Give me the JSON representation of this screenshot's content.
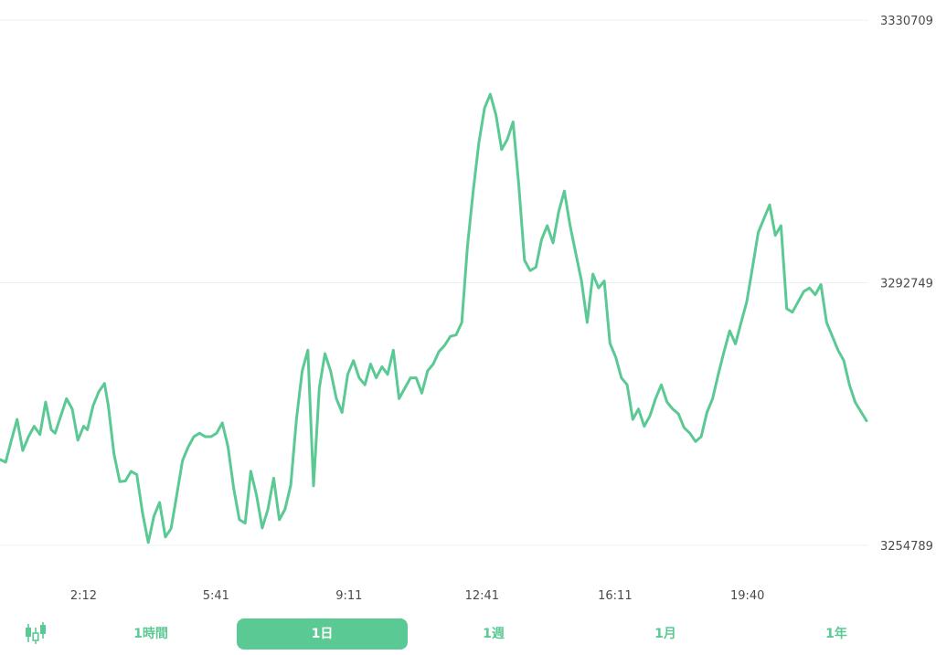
{
  "chart_data": {
    "type": "line",
    "color": "#5bc994",
    "grid": true,
    "y_ticks": [
      "3330709",
      "3292749",
      "3254789"
    ],
    "y_tick_values": [
      3330709,
      3292749,
      3254789
    ],
    "x_ticks": [
      "2:12",
      "5:41",
      "9:11",
      "12:41",
      "16:11",
      "19:40"
    ],
    "x_tick_positions": [
      2.2,
      5.683,
      9.183,
      12.683,
      16.183,
      19.667
    ],
    "x_range": [
      0,
      22.8
    ],
    "ylim": [
      3254789,
      3330709
    ],
    "series": [
      {
        "x": [
          0,
          0.15,
          0.3,
          0.45,
          0.6,
          0.75,
          0.9,
          1.05,
          1.2,
          1.35,
          1.45,
          1.6,
          1.75,
          1.9,
          2.05,
          2.2,
          2.3,
          2.45,
          2.6,
          2.75,
          2.85,
          3.0,
          3.15,
          3.3,
          3.45,
          3.6,
          3.75,
          3.9,
          4.05,
          4.2,
          4.35,
          4.5,
          4.65,
          4.8,
          4.95,
          5.1,
          5.25,
          5.4,
          5.55,
          5.7,
          5.85,
          6.0,
          6.15,
          6.3,
          6.45,
          6.6,
          6.75,
          6.9,
          7.05,
          7.2,
          7.35,
          7.5,
          7.65,
          7.8,
          7.95,
          8.1,
          8.25,
          8.4,
          8.55,
          8.7,
          8.85,
          9.0,
          9.15,
          9.3,
          9.45,
          9.6,
          9.75,
          9.9,
          10.05,
          10.2,
          10.35,
          10.5,
          10.65,
          10.8,
          10.95,
          11.1,
          11.25,
          11.4,
          11.55,
          11.7,
          11.85,
          12.0,
          12.15,
          12.3,
          12.45,
          12.6,
          12.75,
          12.9,
          13.05,
          13.2,
          13.35,
          13.5,
          13.65,
          13.8,
          13.95,
          14.1,
          14.25,
          14.4,
          14.55,
          14.7,
          14.85,
          15.0,
          15.15,
          15.3,
          15.45,
          15.6,
          15.75,
          15.9,
          16.05,
          16.2,
          16.35,
          16.5,
          16.65,
          16.8,
          16.95,
          17.1,
          17.25,
          17.4,
          17.55,
          17.7,
          17.85,
          18.0,
          18.15,
          18.3,
          18.45,
          18.6,
          18.75,
          18.9,
          19.05,
          19.2,
          19.35,
          19.5,
          19.65,
          19.8,
          19.95,
          20.1,
          20.25,
          20.4,
          20.55,
          20.7,
          20.85,
          21.0,
          21.15,
          21.3,
          21.45,
          21.6,
          21.75,
          21.9,
          22.05,
          22.2,
          22.35,
          22.5,
          22.8
        ],
        "y": [
          3267200,
          3266800,
          3270000,
          3273000,
          3268500,
          3270500,
          3272000,
          3270800,
          3275500,
          3271500,
          3271000,
          3273500,
          3276000,
          3274500,
          3270000,
          3272000,
          3271500,
          3275000,
          3277000,
          3278200,
          3275000,
          3268000,
          3264000,
          3264100,
          3265500,
          3265000,
          3259500,
          3255200,
          3259000,
          3261000,
          3256000,
          3257200,
          3262000,
          3267000,
          3269000,
          3270500,
          3271000,
          3270500,
          3270500,
          3271000,
          3272500,
          3269000,
          3263000,
          3258500,
          3258000,
          3265500,
          3262000,
          3257300,
          3260000,
          3264500,
          3258500,
          3260000,
          3263500,
          3273000,
          3280000,
          3283000,
          3263400,
          3277500,
          3282500,
          3280000,
          3276000,
          3274000,
          3279500,
          3281500,
          3279000,
          3278000,
          3281000,
          3279000,
          3280600,
          3279500,
          3283000,
          3276000,
          3277500,
          3279000,
          3279000,
          3276800,
          3280000,
          3281000,
          3282800,
          3283700,
          3285000,
          3285200,
          3287000,
          3298000,
          3306000,
          3313000,
          3318000,
          3320000,
          3317000,
          3312000,
          3313500,
          3316000,
          3306800,
          3296000,
          3294500,
          3295000,
          3299000,
          3301000,
          3298500,
          3303000,
          3306000,
          3301000,
          3297000,
          3293000,
          3287000,
          3294000,
          3292000,
          3293000,
          3284000,
          3282000,
          3279000,
          3278000,
          3273000,
          3274500,
          3272000,
          3273500,
          3276000,
          3278000,
          3275500,
          3274500,
          3273800,
          3271800,
          3271000,
          3269800,
          3270500,
          3274000,
          3276000,
          3279500,
          3282800,
          3285800,
          3283900,
          3287000,
          3290000,
          3295000,
          3300000,
          3302000,
          3304000,
          3299600,
          3301000,
          3289000,
          3288500,
          3290000,
          3291500,
          3292000,
          3291000,
          3292500,
          3287000,
          3285000,
          3283000,
          3281500,
          3278000,
          3275500,
          3272800
        ]
      }
    ]
  },
  "tabs": {
    "candle_icon": "candlestick-icon",
    "items": [
      {
        "label": "1時間"
      },
      {
        "label": "1日"
      },
      {
        "label": "1週"
      },
      {
        "label": "1月"
      },
      {
        "label": "1年"
      }
    ],
    "active_index": 1
  }
}
